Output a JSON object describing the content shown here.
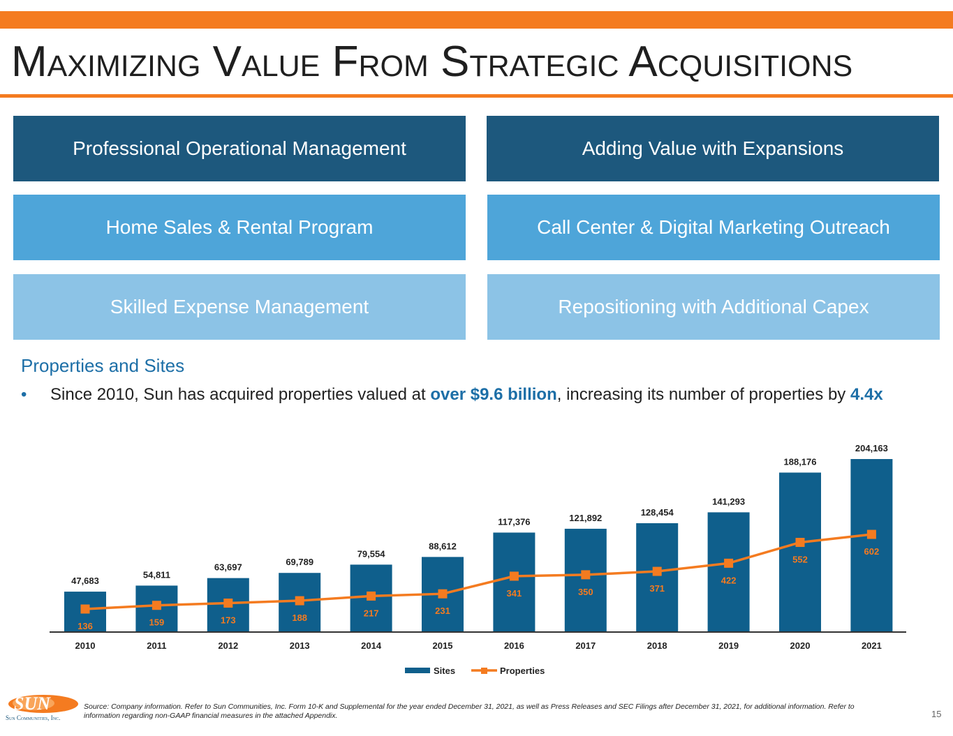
{
  "slide": {
    "title": "Maximizing Value From Strategic Acquisitions",
    "page_number": "15"
  },
  "boxes": [
    {
      "label": "Professional Operational Management",
      "color": "#1d587d"
    },
    {
      "label": "Adding Value with Expansions",
      "color": "#1d587d"
    },
    {
      "label": "Home Sales & Rental Program",
      "color": "#4ea5d9"
    },
    {
      "label": "Call Center & Digital Marketing Outreach",
      "color": "#4ea5d9"
    },
    {
      "label": "Skilled Expense Management",
      "color": "#8cc3e6"
    },
    {
      "label": "Repositioning with Additional Capex",
      "color": "#8cc3e6"
    }
  ],
  "section": {
    "heading": "Properties and Sites",
    "bullet_symbol": "•",
    "bullet_part1": "Since 2010, Sun has acquired properties valued at ",
    "bullet_highlight1": "over $9.6 billion",
    "bullet_part2": ", increasing its number of properties by ",
    "bullet_highlight2": "4.4x"
  },
  "chart_data": {
    "type": "bar",
    "categories": [
      "2010",
      "2011",
      "2012",
      "2013",
      "2014",
      "2015",
      "2016",
      "2017",
      "2018",
      "2019",
      "2020",
      "2021"
    ],
    "series": [
      {
        "name": "Sites",
        "type": "bar",
        "color": "#0f5f8c",
        "values": [
          47683,
          54811,
          63697,
          69789,
          79554,
          88612,
          117376,
          121892,
          128454,
          141293,
          188176,
          204163
        ],
        "labels": [
          "47,683",
          "54,811",
          "63,697",
          "69,789",
          "79,554",
          "88,612",
          "117,376",
          "121,892",
          "128,454",
          "141,293",
          "188,176",
          "204,163"
        ]
      },
      {
        "name": "Properties",
        "type": "line",
        "color": "#f47b20",
        "values": [
          136,
          159,
          173,
          188,
          217,
          231,
          341,
          350,
          371,
          422,
          552,
          602
        ],
        "labels": [
          "136",
          "159",
          "173",
          "188",
          "217",
          "231",
          "341",
          "350",
          "371",
          "422",
          "552",
          "602"
        ]
      }
    ],
    "legend_position": "bottom-center",
    "grid": false
  },
  "footer": {
    "logo_text": "SUN",
    "logo_caption": "Sun Communities, Inc.",
    "source_note": "Source: Company information. Refer to Sun Communities, Inc. Form 10-K and Supplemental for the year ended December 31, 2021, as well as Press Releases and SEC Filings after December 31, 2021, for additional information. Refer to information regarding non-GAAP financial measures in the attached Appendix."
  }
}
